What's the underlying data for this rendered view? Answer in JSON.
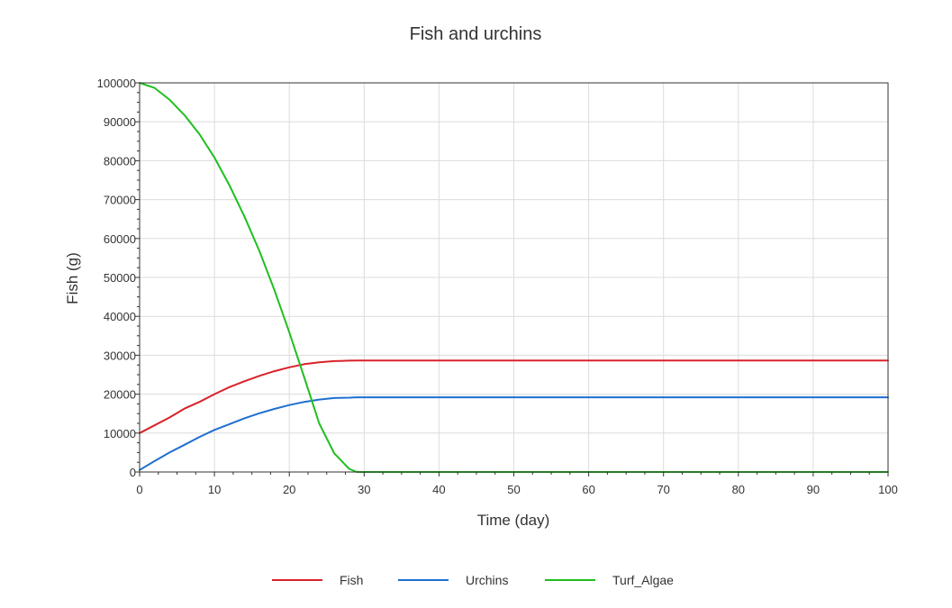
{
  "chart_data": {
    "type": "line",
    "title": "Fish and urchins",
    "xlabel": "Time (day)",
    "ylabel": "Fish (g)",
    "xlim": [
      0,
      100
    ],
    "ylim": [
      0,
      100000
    ],
    "x_ticks": [
      0,
      10,
      20,
      30,
      40,
      50,
      60,
      70,
      80,
      90,
      100
    ],
    "y_ticks": [
      0,
      10000,
      20000,
      30000,
      40000,
      50000,
      60000,
      70000,
      80000,
      90000,
      100000
    ],
    "grid": true,
    "legend_position": "bottom",
    "series": [
      {
        "name": "Fish",
        "color": "#d9222a",
        "x": [
          0,
          2,
          4,
          6,
          8,
          10,
          12,
          14,
          16,
          18,
          20,
          22,
          24,
          26,
          28,
          29,
          30,
          40,
          50,
          60,
          70,
          80,
          90,
          100
        ],
        "y": [
          10000,
          12000,
          14000,
          16300,
          18000,
          20000,
          21800,
          23300,
          24700,
          25900,
          26900,
          27700,
          28200,
          28500,
          28600,
          28650,
          28650,
          28650,
          28650,
          28650,
          28650,
          28650,
          28650,
          28650
        ]
      },
      {
        "name": "Urchins",
        "color": "#1f6fd1",
        "x": [
          0,
          2,
          4,
          6,
          8,
          10,
          12,
          14,
          16,
          18,
          20,
          22,
          24,
          26,
          28,
          29,
          30,
          40,
          50,
          60,
          70,
          80,
          90,
          100
        ],
        "y": [
          500,
          2800,
          5000,
          7000,
          9000,
          10800,
          12300,
          13800,
          15100,
          16200,
          17200,
          18000,
          18600,
          19000,
          19100,
          19200,
          19200,
          19200,
          19200,
          19200,
          19200,
          19200,
          19200,
          19200
        ]
      },
      {
        "name": "Turf_Algae",
        "color": "#1fbf1f",
        "x": [
          0,
          2,
          4,
          6,
          8,
          10,
          12,
          14,
          16,
          18,
          20,
          22,
          24,
          26,
          28,
          29,
          30,
          40,
          50,
          60,
          70,
          80,
          90,
          100
        ],
        "y": [
          100000,
          98700,
          95700,
          91700,
          86800,
          80800,
          73700,
          65700,
          56800,
          46800,
          35900,
          24300,
          12500,
          4800,
          800,
          0,
          0,
          0,
          0,
          0,
          0,
          0,
          0,
          0
        ]
      }
    ]
  }
}
